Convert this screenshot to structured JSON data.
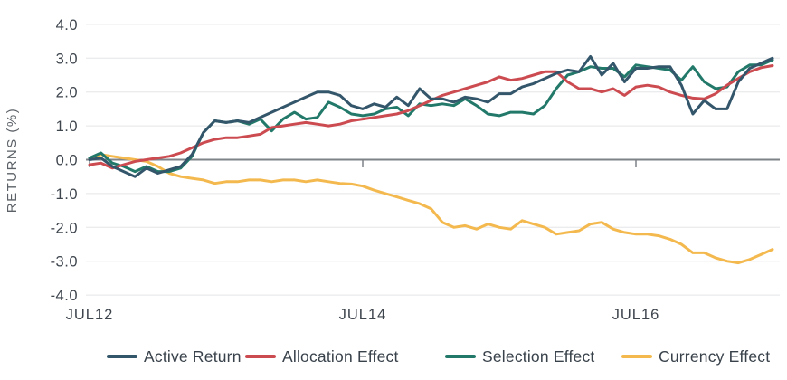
{
  "chart_data": {
    "type": "line",
    "title": "",
    "ylabel": "RETURNS (%)",
    "ylim": [
      -4.0,
      4.0
    ],
    "ytick_step": 1.0,
    "ytick_labels": [
      "4.0",
      "3.0",
      "2.0",
      "1.0",
      "0.0",
      "-1.0",
      "-2.0",
      "-3.0",
      "-4.0"
    ],
    "ytick_values": [
      4,
      3,
      2,
      1,
      0,
      -1,
      -2,
      -3,
      -4
    ],
    "grid": "horizontal-only",
    "legend_position": "bottom",
    "x_period": {
      "start": "JUL12",
      "end": "JUL17",
      "interval": "monthly"
    },
    "x_ticks": [
      {
        "label": "JUL12",
        "month": 0
      },
      {
        "label": "JUL14",
        "month": 24
      },
      {
        "label": "JUL16",
        "month": 48
      }
    ],
    "colors": {
      "active_return": "#34566b",
      "allocation_effect": "#cc4b50",
      "selection_effect": "#22796a",
      "currency_effect": "#f4b94e",
      "gridline": "#e4e5e7",
      "zero_line": "#7e8388",
      "tick_label": "#3e454d",
      "axis_title": "#5b6167",
      "legend_text": "#39424b"
    },
    "series": [
      {
        "name": "Active Return",
        "slug": "active-return",
        "color": "#34566b",
        "values": [
          0.0,
          0.05,
          -0.2,
          -0.35,
          -0.5,
          -0.25,
          -0.4,
          -0.3,
          -0.2,
          0.15,
          0.8,
          1.15,
          1.1,
          1.15,
          1.1,
          1.25,
          1.4,
          1.55,
          1.7,
          1.85,
          2.0,
          2.0,
          1.9,
          1.6,
          1.5,
          1.65,
          1.55,
          1.85,
          1.6,
          2.1,
          1.8,
          1.8,
          1.7,
          1.85,
          1.8,
          1.7,
          1.95,
          1.95,
          2.15,
          2.25,
          2.4,
          2.55,
          2.65,
          2.6,
          3.05,
          2.5,
          2.85,
          2.3,
          2.7,
          2.7,
          2.75,
          2.75,
          2.2,
          1.35,
          1.75,
          1.5,
          1.5,
          2.3,
          2.7,
          2.85,
          3.0
        ]
      },
      {
        "name": "Allocation Effect",
        "slug": "allocation-effect",
        "color": "#cc4b50",
        "values": [
          -0.15,
          -0.1,
          -0.25,
          -0.15,
          -0.05,
          0.0,
          0.05,
          0.1,
          0.2,
          0.35,
          0.5,
          0.6,
          0.65,
          0.65,
          0.7,
          0.75,
          0.95,
          1.0,
          1.05,
          1.1,
          1.05,
          1.0,
          1.05,
          1.15,
          1.2,
          1.25,
          1.3,
          1.35,
          1.45,
          1.6,
          1.75,
          1.9,
          2.0,
          2.1,
          2.2,
          2.3,
          2.45,
          2.35,
          2.4,
          2.5,
          2.6,
          2.6,
          2.3,
          2.1,
          2.1,
          2.0,
          2.1,
          1.9,
          2.15,
          2.2,
          2.15,
          2.0,
          1.9,
          1.82,
          1.8,
          1.95,
          2.2,
          2.4,
          2.6,
          2.72,
          2.78
        ]
      },
      {
        "name": "Selection Effect",
        "slug": "selection-effect",
        "color": "#22796a",
        "values": [
          0.05,
          0.2,
          -0.1,
          -0.2,
          -0.35,
          -0.2,
          -0.35,
          -0.35,
          -0.25,
          0.1,
          0.8,
          1.15,
          1.1,
          1.15,
          1.05,
          1.2,
          0.85,
          1.2,
          1.4,
          1.2,
          1.25,
          1.7,
          1.55,
          1.35,
          1.3,
          1.35,
          1.5,
          1.55,
          1.3,
          1.65,
          1.6,
          1.65,
          1.6,
          1.8,
          1.6,
          1.35,
          1.3,
          1.4,
          1.4,
          1.35,
          1.6,
          2.1,
          2.5,
          2.6,
          2.75,
          2.7,
          2.7,
          2.45,
          2.8,
          2.75,
          2.7,
          2.65,
          2.35,
          2.75,
          2.3,
          2.1,
          2.15,
          2.6,
          2.8,
          2.8,
          2.95
        ]
      },
      {
        "name": "Currency Effect",
        "slug": "currency-effect",
        "color": "#f4b94e",
        "values": [
          0.05,
          0.15,
          0.1,
          0.05,
          0.0,
          -0.05,
          -0.2,
          -0.4,
          -0.5,
          -0.55,
          -0.6,
          -0.7,
          -0.65,
          -0.65,
          -0.6,
          -0.6,
          -0.65,
          -0.6,
          -0.6,
          -0.65,
          -0.6,
          -0.65,
          -0.7,
          -0.72,
          -0.78,
          -0.9,
          -1.0,
          -1.1,
          -1.2,
          -1.3,
          -1.45,
          -1.85,
          -2.0,
          -1.95,
          -2.05,
          -1.9,
          -2.0,
          -2.05,
          -1.8,
          -1.9,
          -2.0,
          -2.2,
          -2.15,
          -2.1,
          -1.9,
          -1.85,
          -2.05,
          -2.15,
          -2.2,
          -2.2,
          -2.25,
          -2.35,
          -2.5,
          -2.75,
          -2.75,
          -2.9,
          -3.0,
          -3.05,
          -2.95,
          -2.8,
          -2.65
        ]
      }
    ]
  }
}
